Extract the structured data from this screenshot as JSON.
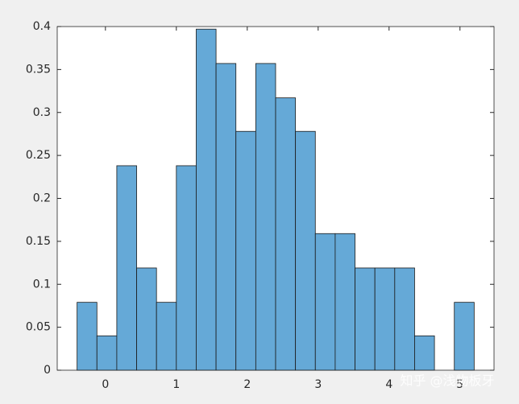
{
  "chart_data": {
    "type": "histogram",
    "bins": [
      -0.4,
      -0.12,
      0.16,
      0.44,
      0.72,
      1.0,
      1.28,
      1.56,
      1.84,
      2.12,
      2.4,
      2.68,
      2.96,
      3.24,
      3.52,
      3.8,
      4.08,
      4.36,
      4.64,
      4.92,
      5.2
    ],
    "values": [
      0.079,
      0.04,
      0.238,
      0.119,
      0.079,
      0.238,
      0.397,
      0.357,
      0.278,
      0.357,
      0.317,
      0.278,
      0.159,
      0.159,
      0.119,
      0.119,
      0.119,
      0.04,
      0,
      0.079
    ],
    "color": "#65a9d7",
    "xlim": [
      -0.68,
      5.48
    ],
    "xticks": [
      0,
      1,
      2,
      3,
      4,
      5
    ],
    "ylim": [
      0,
      0.4
    ],
    "yticks": [
      0,
      0.05,
      0.1,
      0.15,
      0.2,
      0.25,
      0.3,
      0.35,
      0.4
    ],
    "watermark": "知乎 @浅物板牙"
  }
}
